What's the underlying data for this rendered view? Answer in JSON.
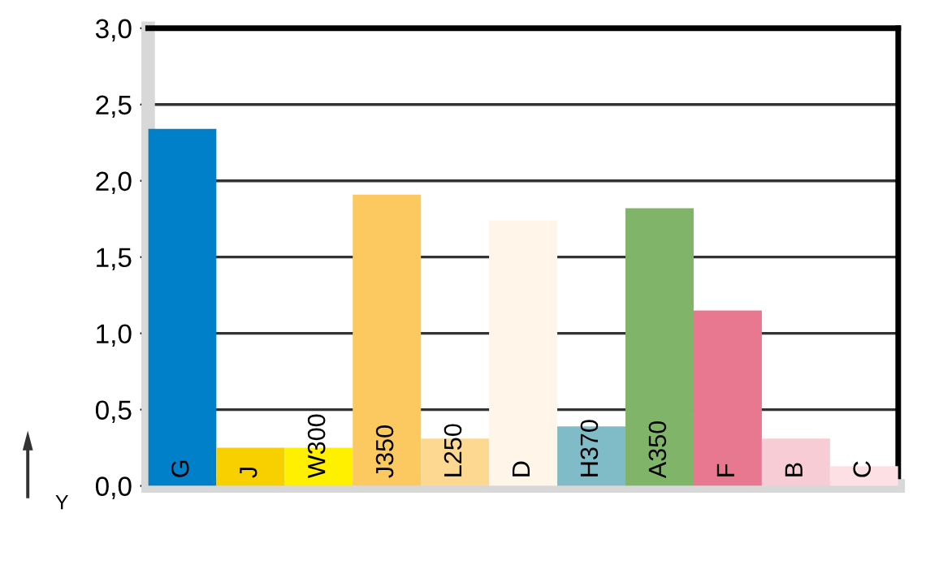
{
  "chart_data": {
    "type": "bar",
    "ylabel": "Y",
    "categories": [
      "G",
      "J",
      "W300",
      "J350",
      "L250",
      "D",
      "H370",
      "A350",
      "F",
      "B",
      "C"
    ],
    "values": [
      2.34,
      0.25,
      0.25,
      1.91,
      0.31,
      1.74,
      0.39,
      1.82,
      1.15,
      0.31,
      0.13
    ],
    "colors": [
      "#0080c8",
      "#f8d000",
      "#fff000",
      "#fcc860",
      "#fdd890",
      "#fff5e8",
      "#80bcc8",
      "#80b468",
      "#e87890",
      "#f8ccd4",
      "#fce0e4"
    ],
    "ylim": [
      0,
      3
    ],
    "yticks": [
      {
        "value": 0,
        "label": "0,0"
      },
      {
        "value": 0.5,
        "label": "0,5"
      },
      {
        "value": 1,
        "label": "1,0"
      },
      {
        "value": 1.5,
        "label": "1,5"
      },
      {
        "value": 2,
        "label": "2,0"
      },
      {
        "value": 2.5,
        "label": "2,5"
      },
      {
        "value": 3,
        "label": "3,0"
      }
    ],
    "grid": "y"
  }
}
